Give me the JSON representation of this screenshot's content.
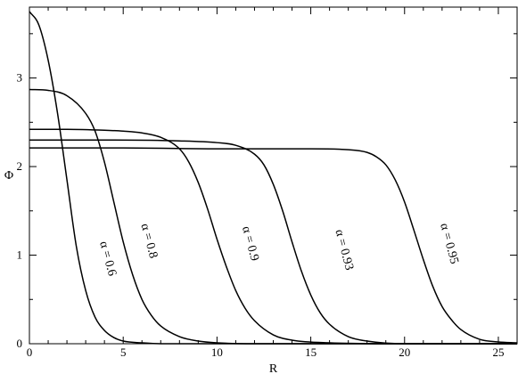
{
  "chart_data": {
    "type": "line",
    "title": "",
    "xlabel": "R",
    "ylabel": "Φ",
    "xlim": [
      0,
      26
    ],
    "ylim": [
      0,
      3.8
    ],
    "xticks": [
      0,
      5,
      10,
      15,
      20,
      25
    ],
    "yticks": [
      0,
      1,
      2,
      3
    ],
    "grid": false,
    "legend": "none",
    "series": [
      {
        "name": "α = 0.6",
        "x": [
          0,
          0.5,
          1,
          1.5,
          2,
          2.5,
          3,
          3.5,
          4,
          4.5,
          5,
          6,
          7,
          8,
          10,
          15,
          20,
          26
        ],
        "y": [
          3.75,
          3.6,
          3.2,
          2.6,
          1.85,
          1.1,
          0.6,
          0.3,
          0.15,
          0.07,
          0.03,
          0.01,
          0.0,
          0.0,
          0.0,
          0.0,
          0.0,
          0.0
        ]
      },
      {
        "name": "α = 0.8",
        "x": [
          0,
          1,
          2,
          3,
          3.5,
          4,
          4.5,
          5,
          5.5,
          6,
          6.5,
          7,
          8,
          9,
          10,
          12,
          15,
          20,
          26
        ],
        "y": [
          2.87,
          2.86,
          2.8,
          2.6,
          2.4,
          2.05,
          1.6,
          1.15,
          0.78,
          0.5,
          0.32,
          0.2,
          0.08,
          0.03,
          0.01,
          0.0,
          0.0,
          0.0,
          0.0
        ]
      },
      {
        "name": "α = 0.9",
        "x": [
          0,
          2,
          4,
          5,
          6,
          7,
          8,
          8.5,
          9,
          9.5,
          10,
          10.5,
          11,
          11.5,
          12,
          13,
          14,
          16,
          20,
          26
        ],
        "y": [
          2.42,
          2.42,
          2.41,
          2.4,
          2.38,
          2.33,
          2.2,
          2.05,
          1.82,
          1.52,
          1.18,
          0.87,
          0.6,
          0.4,
          0.26,
          0.1,
          0.04,
          0.01,
          0.0,
          0.0
        ]
      },
      {
        "name": "α = 0.93",
        "x": [
          0,
          4,
          8,
          10,
          11,
          12,
          12.5,
          13,
          13.5,
          14,
          14.5,
          15,
          15.5,
          16,
          17,
          18,
          20,
          26
        ],
        "y": [
          2.3,
          2.3,
          2.29,
          2.27,
          2.24,
          2.14,
          2.02,
          1.8,
          1.5,
          1.15,
          0.82,
          0.55,
          0.35,
          0.22,
          0.08,
          0.03,
          0.0,
          0.0
        ]
      },
      {
        "name": "α = 0.95",
        "x": [
          0,
          5,
          10,
          15,
          17,
          18,
          18.5,
          19,
          19.5,
          20,
          20.5,
          21,
          21.5,
          22,
          22.5,
          23,
          24,
          25,
          26
        ],
        "y": [
          2.21,
          2.21,
          2.2,
          2.2,
          2.19,
          2.16,
          2.11,
          2.02,
          1.85,
          1.6,
          1.28,
          0.95,
          0.65,
          0.42,
          0.27,
          0.16,
          0.05,
          0.02,
          0.01
        ]
      }
    ]
  }
}
